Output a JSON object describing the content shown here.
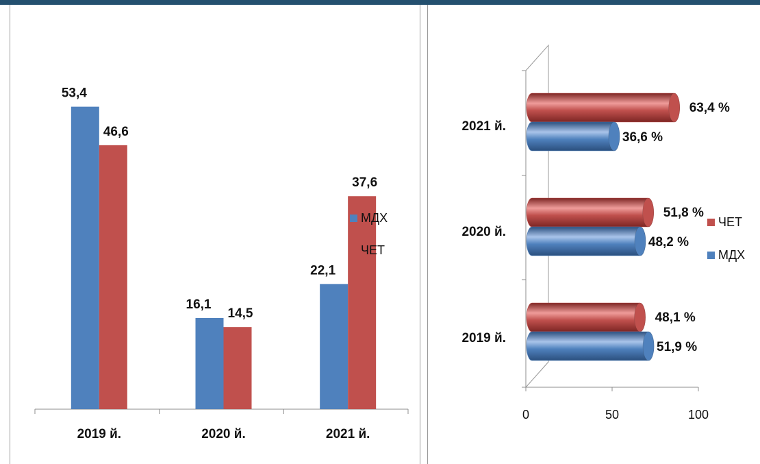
{
  "chart_data": [
    {
      "type": "bar",
      "categories": [
        "2019 й.",
        "2020 й.",
        "2021 й."
      ],
      "series": [
        {
          "name": "МДХ",
          "values": [
            53.4,
            16.1,
            22.1
          ],
          "labels": [
            "53,4",
            "16,1",
            "22,1"
          ],
          "color": "#4f81bd"
        },
        {
          "name": "ЧЕТ",
          "values": [
            46.6,
            14.5,
            37.6
          ],
          "labels": [
            "46,6",
            "14,5",
            "37,6"
          ],
          "color": "#c0504d"
        }
      ],
      "ylim": [
        0,
        60
      ],
      "legend": "right",
      "grid": false
    },
    {
      "type": "bar",
      "orientation": "horizontal",
      "style": "3d-cylinder",
      "categories": [
        "2019 й.",
        "2020 й.",
        "2021 й."
      ],
      "series": [
        {
          "name": "МДХ",
          "values": [
            51.9,
            48.2,
            36.6
          ],
          "labels": [
            "51,9 %",
            "48,2 %",
            "36,6 %"
          ],
          "color": "#4f81bd"
        },
        {
          "name": "ЧЕТ",
          "values": [
            48.1,
            51.8,
            63.4
          ],
          "labels": [
            "48,1 %",
            "51,8 %",
            "63,4 %"
          ],
          "color": "#c0504d"
        }
      ],
      "xlim": [
        0,
        100
      ],
      "xticks": [
        "0",
        "50",
        "100"
      ],
      "legend_order": [
        "ЧЕТ",
        "МДХ"
      ],
      "legend": "right",
      "grid": false
    }
  ]
}
